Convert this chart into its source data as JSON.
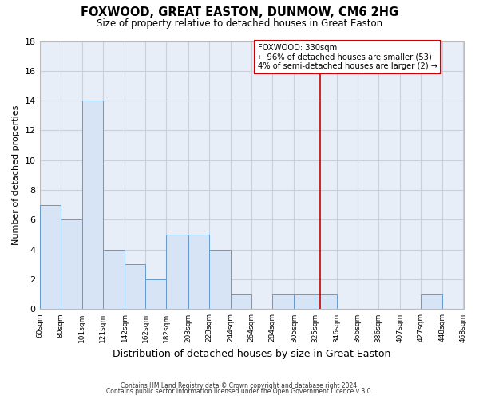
{
  "title": "FOXWOOD, GREAT EASTON, DUNMOW, CM6 2HG",
  "subtitle": "Size of property relative to detached houses in Great Easton",
  "xlabel": "Distribution of detached houses by size in Great Easton",
  "ylabel": "Number of detached properties",
  "bar_color": "#d6e4f5",
  "bar_edge_color": "#6699cc",
  "background_color": "#e8eef8",
  "grid_color": "#c8d0dc",
  "vline_color": "#cc0000",
  "vline_x": 330,
  "bin_edges": [
    60,
    80,
    101,
    121,
    142,
    162,
    182,
    203,
    223,
    244,
    264,
    284,
    305,
    325,
    346,
    366,
    386,
    407,
    427,
    448,
    468
  ],
  "counts": [
    7,
    6,
    14,
    4,
    3,
    2,
    5,
    5,
    4,
    1,
    0,
    1,
    1,
    1,
    0,
    0,
    0,
    0,
    1,
    0
  ],
  "tick_labels": [
    "60sqm",
    "80sqm",
    "101sqm",
    "121sqm",
    "142sqm",
    "162sqm",
    "182sqm",
    "203sqm",
    "223sqm",
    "244sqm",
    "264sqm",
    "284sqm",
    "305sqm",
    "325sqm",
    "346sqm",
    "366sqm",
    "386sqm",
    "407sqm",
    "427sqm",
    "448sqm",
    "468sqm"
  ],
  "ylim": [
    0,
    18
  ],
  "yticks": [
    0,
    2,
    4,
    6,
    8,
    10,
    12,
    14,
    16,
    18
  ],
  "annotation_title": "FOXWOOD: 330sqm",
  "annotation_line1": "← 96% of detached houses are smaller (53)",
  "annotation_line2": "4% of semi-detached houses are larger (2) →",
  "footnote1": "Contains HM Land Registry data © Crown copyright and database right 2024.",
  "footnote2": "Contains public sector information licensed under the Open Government Licence v 3.0."
}
